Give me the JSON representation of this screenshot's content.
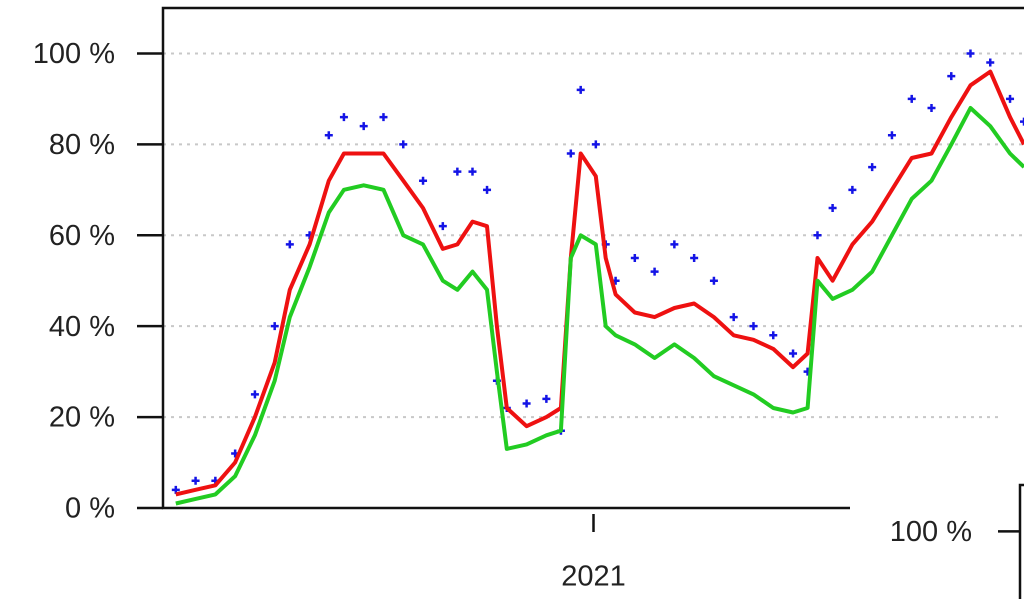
{
  "chart_data": [
    {
      "type": "line",
      "x": [
        2020.282,
        2020.316,
        2020.35,
        2020.384,
        2020.418,
        2020.452,
        2020.478,
        2020.512,
        2020.545,
        2020.571,
        2020.605,
        2020.639,
        2020.673,
        2020.707,
        2020.741,
        2020.766,
        2020.792,
        2020.817,
        2020.834,
        2020.851,
        2020.885,
        2020.919,
        2020.944,
        2020.961,
        2020.978,
        2021.004,
        2021.021,
        2021.038,
        2021.071,
        2021.105,
        2021.139,
        2021.173,
        2021.207,
        2021.241,
        2021.275,
        2021.309,
        2021.343,
        2021.368,
        2021.385,
        2021.411,
        2021.445,
        2021.479,
        2021.513,
        2021.547,
        2021.581,
        2021.615,
        2021.648,
        2021.682,
        2021.716,
        2021.74
      ],
      "series": [
        {
          "style": "markers",
          "color": "#1414e6",
          "values": [
            4,
            6,
            6,
            12,
            25,
            40,
            58,
            60,
            82,
            86,
            84,
            86,
            80,
            72,
            62,
            74,
            74,
            70,
            28,
            22,
            23,
            24,
            17,
            78,
            92,
            80,
            58,
            50,
            55,
            52,
            58,
            55,
            50,
            42,
            40,
            38,
            34,
            30,
            60,
            66,
            70,
            75,
            82,
            90,
            88,
            95,
            100,
            98,
            90,
            85
          ]
        },
        {
          "style": "line",
          "color": "#ee1111",
          "values": [
            3,
            4,
            5,
            10,
            20,
            32,
            48,
            58,
            72,
            78,
            78,
            78,
            72,
            66,
            57,
            58,
            63,
            62,
            40,
            22,
            18,
            20,
            22,
            55,
            78,
            73,
            55,
            47,
            43,
            42,
            44,
            45,
            42,
            38,
            37,
            35,
            31,
            34,
            55,
            50,
            58,
            63,
            70,
            77,
            78,
            86,
            93,
            96,
            86,
            80
          ]
        },
        {
          "style": "line",
          "color": "#22cc22",
          "values": [
            1,
            2,
            3,
            7,
            16,
            28,
            42,
            53,
            65,
            70,
            71,
            70,
            60,
            58,
            50,
            48,
            52,
            48,
            30,
            13,
            14,
            16,
            17,
            55,
            60,
            58,
            40,
            38,
            36,
            33,
            36,
            33,
            29,
            27,
            25,
            22,
            21,
            22,
            50,
            46,
            48,
            52,
            60,
            68,
            72,
            80,
            88,
            84,
            78,
            75
          ]
        }
      ],
      "xlim": [
        2020.26,
        2021.74
      ],
      "xticks": [
        2021
      ],
      "ylim": [
        0,
        110
      ],
      "yticks": [
        {
          "value": 0,
          "label": "0 %"
        },
        {
          "value": 20,
          "label": "20 %"
        },
        {
          "value": 40,
          "label": "40 %"
        },
        {
          "value": 60,
          "label": "60 %"
        },
        {
          "value": 80,
          "label": "80 %"
        },
        {
          "value": 100,
          "label": "100 %"
        }
      ],
      "grid": true
    },
    {
      "type": "line",
      "ylim": [
        0,
        110
      ],
      "yticks": [
        {
          "value": 100,
          "label": "100 %"
        }
      ]
    }
  ]
}
